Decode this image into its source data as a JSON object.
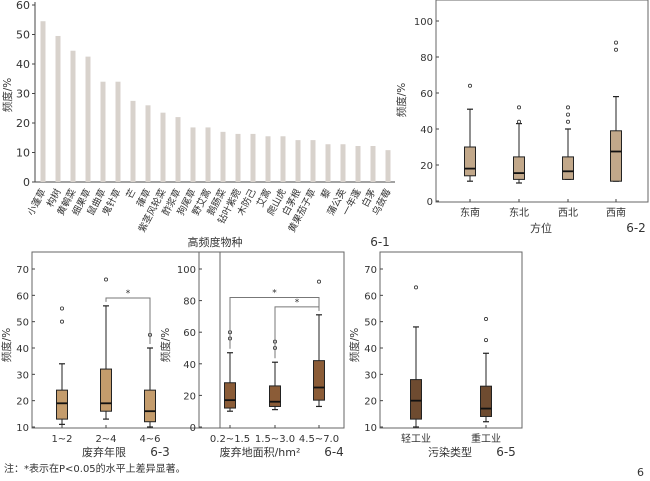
{
  "chart_data": [
    {
      "id": "6-1",
      "type": "bar",
      "panel_label": "6-1",
      "xlabel": "高频度物种",
      "ylabel": "频度/%",
      "ylim": [
        0,
        60
      ],
      "yticks": [
        0,
        10,
        20,
        30,
        40,
        50,
        60
      ],
      "categories": [
        "小蓬草",
        "构树",
        "黄鹌菜",
        "细果草",
        "鼠曲草",
        "鬼针草",
        "芒",
        "葎草",
        "紫茎风轮菜",
        "酢浆草",
        "狗尾草",
        "野艾蒿",
        "鹅肠菜",
        "钻叶紫菀",
        "木防己",
        "艾蒿",
        "爬山虎",
        "白茅根",
        "黄果茄子草",
        "藜",
        "蒲公英",
        "一年蓬",
        "白茅",
        "乌蔹莓"
      ],
      "values": [
        54.5,
        49.5,
        44.5,
        42.5,
        34,
        34,
        27.5,
        26,
        23.5,
        22,
        18.5,
        18.5,
        17,
        16.3,
        16.3,
        15.5,
        15.5,
        14.2,
        14.2,
        12.8,
        12.8,
        12.2,
        12.2,
        10.8
      ],
      "color": "#d8d2cc"
    },
    {
      "id": "6-2",
      "type": "box",
      "panel_label": "6-2",
      "xlabel": "方位",
      "ylabel": "频度/%",
      "ylim": [
        0,
        110
      ],
      "yticks": [
        0,
        20,
        40,
        60,
        80,
        100
      ],
      "color": "#c2a88a",
      "categories": [
        "东南",
        "东北",
        "西北",
        "西南"
      ],
      "boxes": [
        {
          "min": 11,
          "q1": 14,
          "median": 18,
          "q3": 30,
          "max": 51,
          "outliers": [
            64
          ]
        },
        {
          "min": 10,
          "q1": 12,
          "median": 15.5,
          "q3": 24.5,
          "max": 43,
          "outliers": [
            44,
            52
          ]
        },
        {
          "min": 12,
          "q1": 12,
          "median": 16.5,
          "q3": 24.5,
          "max": 40,
          "outliers": [
            44,
            48,
            52
          ]
        },
        {
          "min": 11,
          "q1": 11,
          "median": 27.5,
          "q3": 39,
          "max": 58,
          "outliers": [
            84,
            88
          ]
        }
      ],
      "significance": []
    },
    {
      "id": "6-3",
      "type": "box",
      "panel_label": "6-3",
      "xlabel": "废弃年限",
      "ylabel": "频度/%",
      "ylim": [
        10,
        75
      ],
      "yticks": [
        10,
        20,
        30,
        40,
        50,
        60,
        70
      ],
      "color": "#c49c6c",
      "categories": [
        "1~2",
        "2~4",
        "4~6"
      ],
      "boxes": [
        {
          "min": 11,
          "q1": 13,
          "median": 19,
          "q3": 24,
          "max": 34,
          "outliers": [
            50,
            55
          ]
        },
        {
          "min": 13,
          "q1": 16,
          "median": 19,
          "q3": 32,
          "max": 56,
          "outliers": [
            66
          ]
        },
        {
          "min": 10,
          "q1": 12,
          "median": 16,
          "q3": 24,
          "max": 40,
          "outliers": [
            45
          ]
        }
      ],
      "significance": [
        {
          "from": 1,
          "to": 2,
          "level": 59,
          "mark": "*"
        }
      ]
    },
    {
      "id": "6-4",
      "type": "box",
      "panel_label": "6-4",
      "xlabel": "废弃地面积/hm²",
      "ylabel": "频度/%",
      "ylim": [
        0,
        110
      ],
      "yticks": [
        0,
        20,
        40,
        60,
        80,
        100
      ],
      "color": "#8b5c37",
      "categories": [
        "0.2~1.5",
        "1.5~3.0",
        "4.5~7.0"
      ],
      "boxes": [
        {
          "min": 10,
          "q1": 12,
          "median": 17,
          "q3": 28,
          "max": 47,
          "outliers": [
            56,
            60
          ]
        },
        {
          "min": 11,
          "q1": 13,
          "median": 16,
          "q3": 26,
          "max": 41,
          "outliers": [
            50,
            54
          ]
        },
        {
          "min": 13,
          "q1": 17,
          "median": 25,
          "q3": 42,
          "max": 71,
          "outliers": [
            92
          ]
        }
      ],
      "significance": [
        {
          "from": 0,
          "to": 2,
          "level": 82,
          "mark": "*"
        },
        {
          "from": 1,
          "to": 2,
          "level": 76,
          "mark": "*"
        }
      ]
    },
    {
      "id": "6-5",
      "type": "box",
      "panel_label": "6-5",
      "xlabel": "污染类型",
      "ylabel": "频度/%",
      "ylim": [
        10,
        75
      ],
      "yticks": [
        10,
        20,
        30,
        40,
        50,
        60,
        70
      ],
      "color": "#6e4b30",
      "categories": [
        "轻工业",
        "重工业"
      ],
      "boxes": [
        {
          "min": 10,
          "q1": 13,
          "median": 20,
          "q3": 28,
          "max": 48,
          "outliers": [
            63
          ]
        },
        {
          "min": 12,
          "q1": 14,
          "median": 17,
          "q3": 25.5,
          "max": 38,
          "outliers": [
            43,
            51
          ]
        }
      ],
      "significance": []
    }
  ],
  "footnote": "注：*表示在P<0.05的水平上差异显著。",
  "figure_number": "6"
}
